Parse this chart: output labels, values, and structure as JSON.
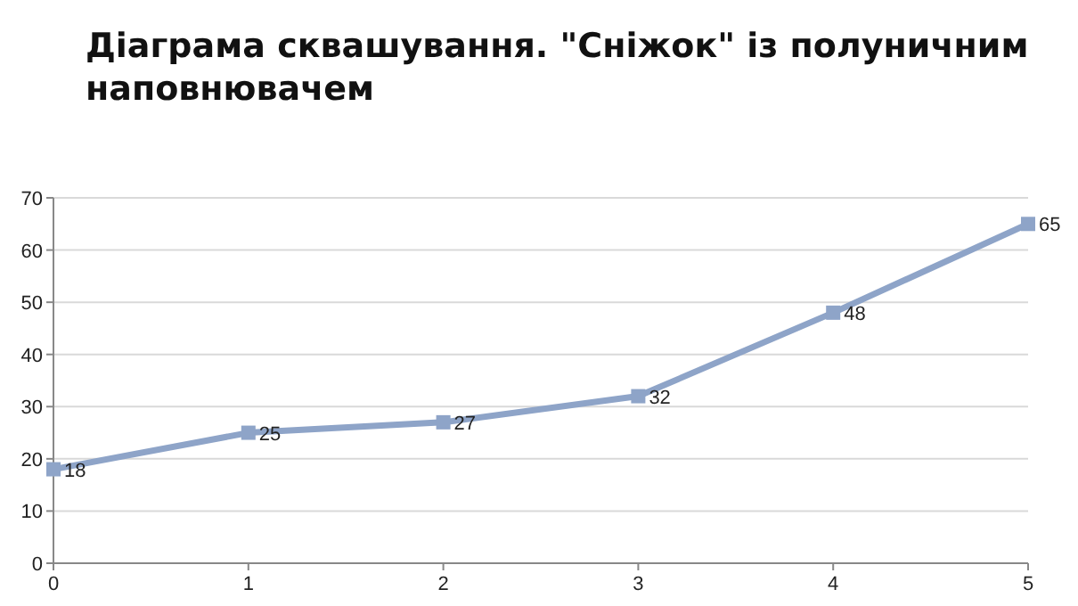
{
  "chart_data": {
    "type": "line",
    "title": "Діаграма сквашування. \"Сніжок\" із полуничним наповнювачем",
    "x": [
      0,
      1,
      2,
      3,
      4,
      5
    ],
    "series": [
      {
        "color": "#8ea4c8",
        "values": [
          18,
          25,
          27,
          32,
          48,
          65
        ]
      }
    ],
    "xlim": [
      0,
      5
    ],
    "xticks": [
      0,
      1,
      2,
      3,
      4,
      5
    ],
    "ylim": [
      0,
      70
    ],
    "yticks": [
      0,
      10,
      20,
      30,
      40,
      50,
      60,
      70
    ],
    "grid": "y",
    "marker": "square",
    "line_style": "solid",
    "data_labels": true
  }
}
